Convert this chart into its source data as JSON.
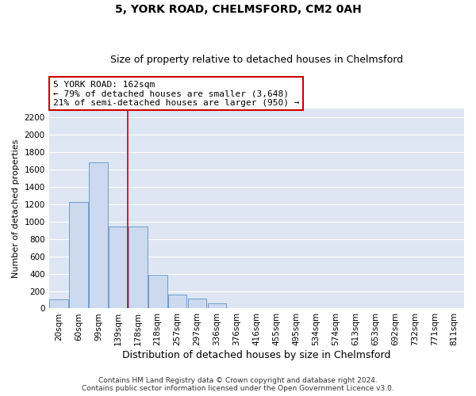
{
  "title": "5, YORK ROAD, CHELMSFORD, CM2 0AH",
  "subtitle": "Size of property relative to detached houses in Chelmsford",
  "xlabel": "Distribution of detached houses by size in Chelmsford",
  "ylabel": "Number of detached properties",
  "footer1": "Contains HM Land Registry data © Crown copyright and database right 2024.",
  "footer2": "Contains public sector information licensed under the Open Government Licence v3.0.",
  "categories": [
    "20sqm",
    "60sqm",
    "99sqm",
    "139sqm",
    "178sqm",
    "218sqm",
    "257sqm",
    "297sqm",
    "336sqm",
    "376sqm",
    "416sqm",
    "455sqm",
    "495sqm",
    "534sqm",
    "574sqm",
    "613sqm",
    "653sqm",
    "692sqm",
    "732sqm",
    "771sqm",
    "811sqm"
  ],
  "values": [
    100,
    1230,
    1680,
    940,
    940,
    390,
    160,
    110,
    60,
    0,
    0,
    0,
    0,
    0,
    0,
    0,
    0,
    0,
    0,
    0,
    0
  ],
  "bar_color": "#ccd9ee",
  "bar_edge_color": "#6b9fcc",
  "annotation_text_line1": "5 YORK ROAD: 162sqm",
  "annotation_text_line2": "← 79% of detached houses are smaller (3,648)",
  "annotation_text_line3": "21% of semi-detached houses are larger (950) →",
  "annotation_box_facecolor": "white",
  "annotation_box_edgecolor": "#cc0000",
  "vline_color": "#cc0000",
  "vline_x": 3.5,
  "ylim": [
    0,
    2300
  ],
  "yticks": [
    0,
    200,
    400,
    600,
    800,
    1000,
    1200,
    1400,
    1600,
    1800,
    2000,
    2200
  ],
  "background_color": "#dde6f2",
  "grid_color": "white",
  "title_fontsize": 10,
  "subtitle_fontsize": 9,
  "ylabel_fontsize": 8,
  "xlabel_fontsize": 9,
  "tick_fontsize": 7.5,
  "annotation_fontsize": 8,
  "footer_fontsize": 6.5
}
